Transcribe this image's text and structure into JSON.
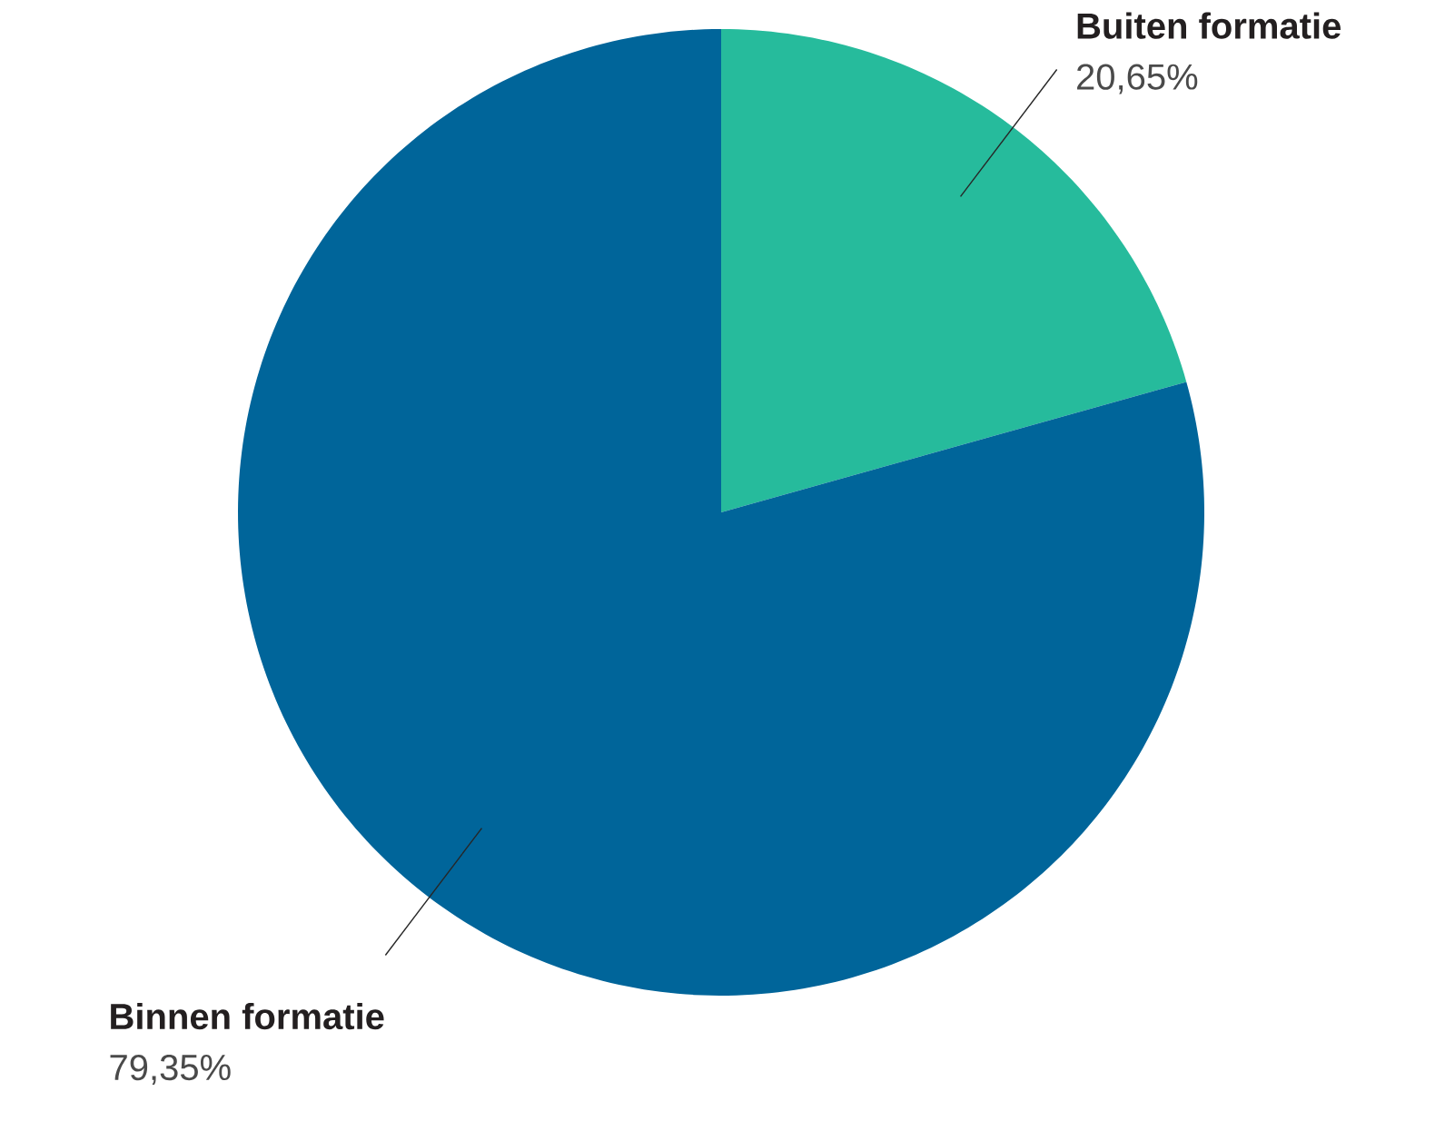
{
  "chart_data": {
    "type": "pie",
    "categories": [
      "Buiten formatie",
      "Binnen formatie"
    ],
    "values": [
      20.65,
      79.35
    ],
    "colors": [
      "#26bb9c",
      "#00659a"
    ],
    "value_labels": [
      "20,65%",
      "79,35%"
    ]
  }
}
